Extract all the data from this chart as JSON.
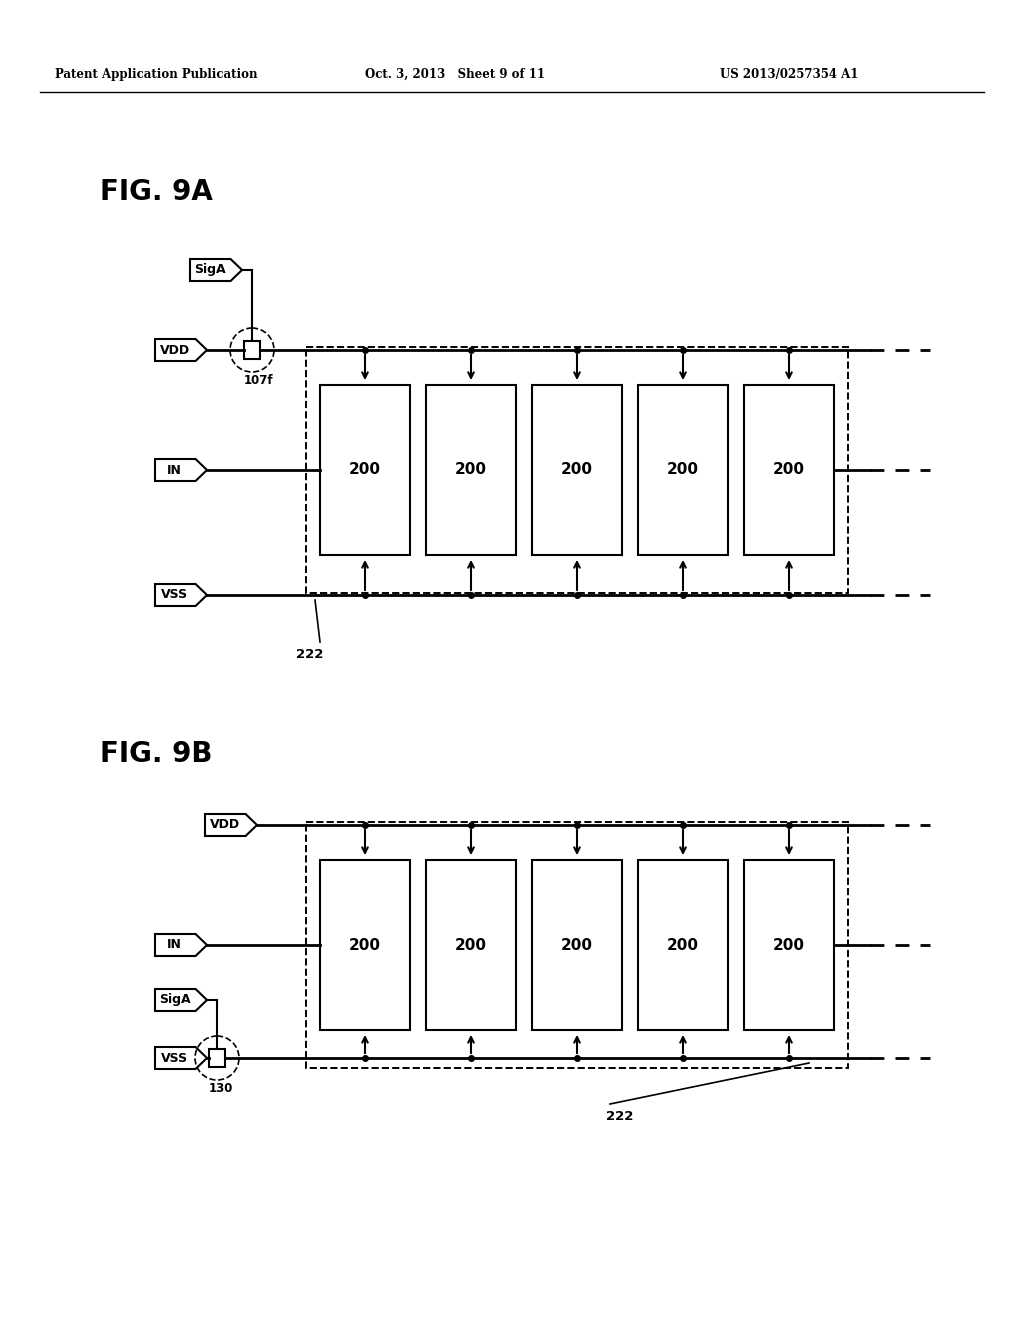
{
  "header_left": "Patent Application Publication",
  "header_mid": "Oct. 3, 2013   Sheet 9 of 11",
  "header_right": "US 2013/0257354 A1",
  "fig9a_label": "FIG. 9A",
  "fig9b_label": "FIG. 9B",
  "block_label": "200",
  "label_107f": "107f",
  "label_222": "222",
  "label_130": "130",
  "bg_color": "#ffffff"
}
